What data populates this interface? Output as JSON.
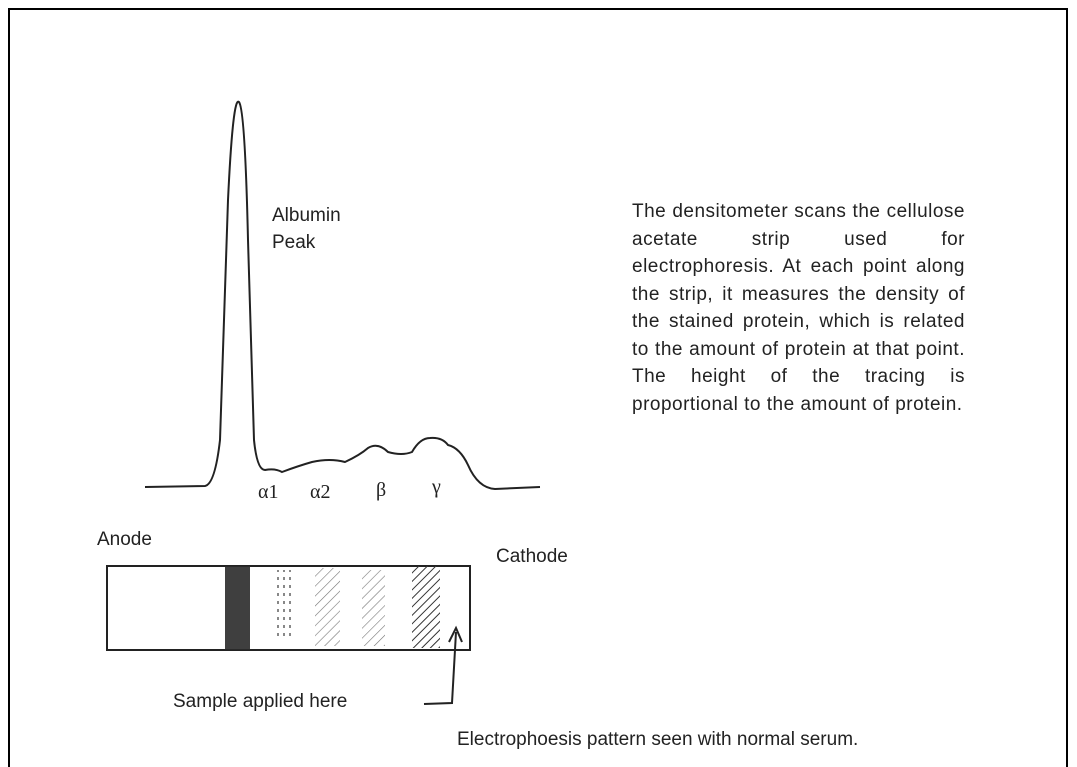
{
  "peak_label": {
    "line1": "Albumin",
    "line2": "Peak"
  },
  "fractions": [
    "α1",
    "α2",
    "β",
    "γ"
  ],
  "description": "The densitometer scans the cellulose acetate strip used for electrophoresis. At each point along the strip, it measures the density of the stained protein, which is related to the amount of protein at that point.  The height of the tracing is proportional to the amount of protein.",
  "strip": {
    "anode": "Anode",
    "cathode": "Cathode",
    "sample": "Sample applied here"
  },
  "caption": "Electrophoesis pattern seen with normal serum."
}
